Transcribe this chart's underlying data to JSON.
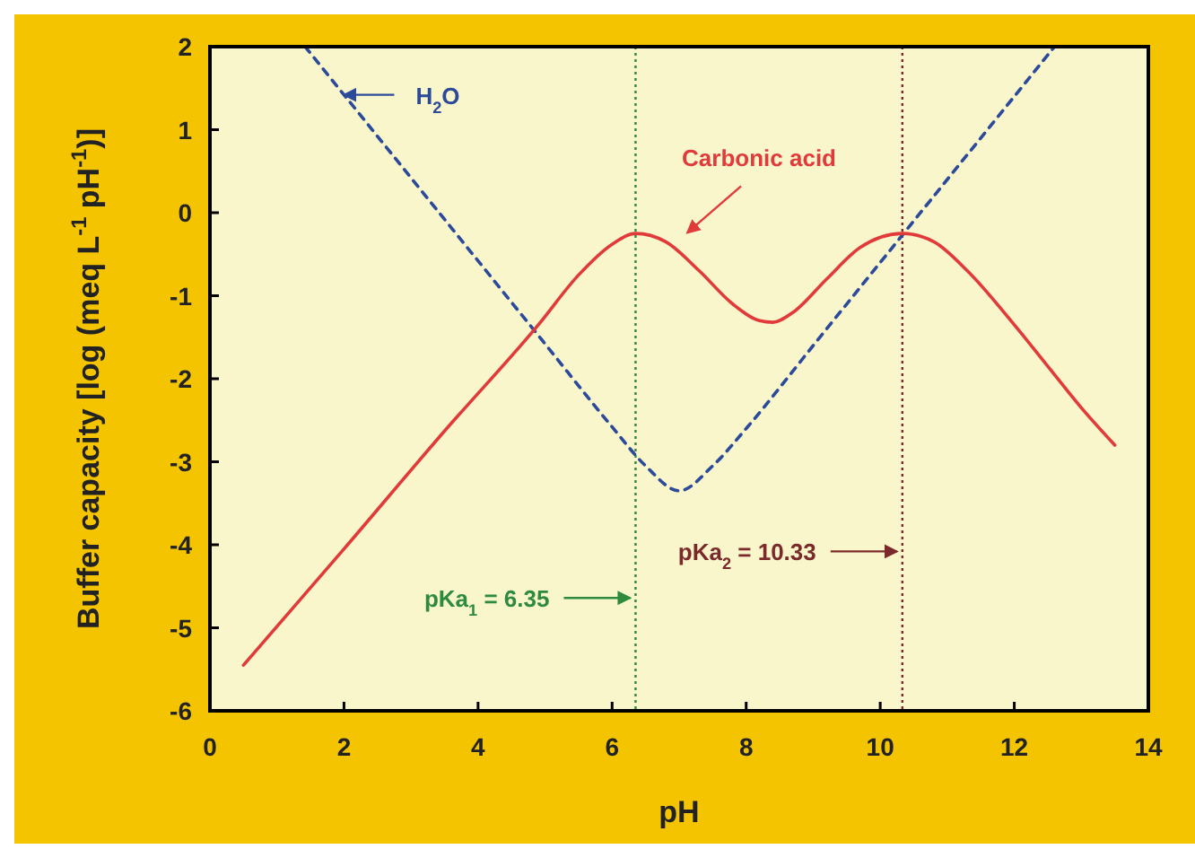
{
  "chart_data": {
    "type": "line",
    "xlabel": "pH",
    "ylabel": "Buffer capacity [log (meq L$^{-1}$ pH$^{-1}$)]",
    "xlim": [
      0,
      14
    ],
    "xticks": [
      0,
      2,
      4,
      6,
      8,
      10,
      12,
      14
    ],
    "ylim": [
      -6,
      2
    ],
    "yticks": [
      -6,
      -5,
      -4,
      -3,
      -2,
      -1,
      0,
      1,
      2
    ],
    "grid": false,
    "series": [
      {
        "name": "H$_{2}$O",
        "color": "#2b4a9a",
        "line_style": "dashed",
        "x": [
          1.42,
          2,
          3,
          4,
          5,
          6,
          6.5,
          7,
          7.5,
          8,
          9,
          10,
          11,
          12,
          12.6
        ],
        "values": [
          2,
          1.42,
          0.42,
          -0.58,
          -1.58,
          -2.58,
          -3.05,
          -3.35,
          -3.05,
          -2.6,
          -1.6,
          -0.6,
          0.4,
          1.4,
          2
        ]
      },
      {
        "name": "Carbonic acid",
        "color": "#e03a3a",
        "line_style": "solid",
        "x": [
          0.5,
          2,
          3.5,
          4.9,
          5.5,
          6,
          6.35,
          6.8,
          7.3,
          7.8,
          8.2,
          8.4,
          8.7,
          9.2,
          9.7,
          10.33,
          10.8,
          11.3,
          12,
          12.5,
          13,
          13.5
        ],
        "values": [
          -5.45,
          -4.05,
          -2.63,
          -1.35,
          -0.75,
          -0.38,
          -0.25,
          -0.35,
          -0.7,
          -1.1,
          -1.3,
          -1.32,
          -1.2,
          -0.8,
          -0.42,
          -0.25,
          -0.35,
          -0.7,
          -1.35,
          -1.85,
          -2.35,
          -2.8
        ]
      }
    ],
    "ref_lines": [
      {
        "axis": "x",
        "value": 6.35,
        "label": "pKa$_{1}$ = 6.35",
        "color": "#2e8b3e",
        "line_style": "dotted"
      },
      {
        "axis": "x",
        "value": 10.33,
        "label": "pKa$_{2}$ = 10.33",
        "color": "#7a2a2a",
        "line_style": "dotted"
      }
    ]
  }
}
